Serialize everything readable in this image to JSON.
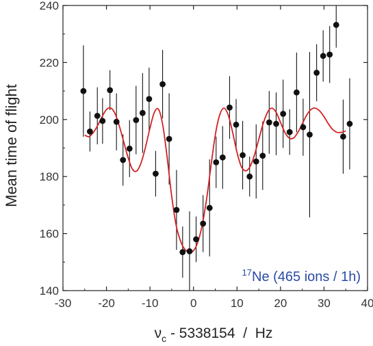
{
  "chart_data": {
    "type": "scatter",
    "xlabel": {
      "symbol": "ν",
      "subscript": "c",
      "rest": " - 5338154  /  Hz"
    },
    "ylabel": "Mean time of flight",
    "xlim": [
      -30,
      40
    ],
    "ylim": [
      140,
      240
    ],
    "xticks": [
      -30,
      -20,
      -10,
      0,
      10,
      20,
      30,
      40
    ],
    "yticks": [
      140,
      160,
      180,
      200,
      220,
      240
    ],
    "grid": false,
    "annotation": {
      "superscript": "17",
      "text": "Ne (465 ions / 1h)",
      "color": "#2b4aa8"
    },
    "series": [
      {
        "type": "scatter-errorbar",
        "color": "#111111",
        "points": [
          {
            "x": -25.3,
            "y": 210.0,
            "err": 16
          },
          {
            "x": -23.8,
            "y": 195.8,
            "err": 7
          },
          {
            "x": -22.1,
            "y": 201.3,
            "err": 10
          },
          {
            "x": -20.9,
            "y": 199.5,
            "err": 8
          },
          {
            "x": -19.2,
            "y": 210.3,
            "err": 7
          },
          {
            "x": -17.7,
            "y": 199.2,
            "err": 10
          },
          {
            "x": -16.2,
            "y": 185.8,
            "err": 9
          },
          {
            "x": -14.7,
            "y": 189.8,
            "err": 10
          },
          {
            "x": -13.2,
            "y": 199.8,
            "err": 12
          },
          {
            "x": -11.7,
            "y": 202.3,
            "err": 14
          },
          {
            "x": -10.2,
            "y": 207.2,
            "err": 11
          },
          {
            "x": -8.7,
            "y": 181.0,
            "err": 8
          },
          {
            "x": -7.1,
            "y": 212.4,
            "err": 12
          },
          {
            "x": -5.6,
            "y": 193.2,
            "err": 16
          },
          {
            "x": -3.9,
            "y": 168.3,
            "err": 14
          },
          {
            "x": -2.5,
            "y": 153.5,
            "err": 9
          },
          {
            "x": -0.9,
            "y": 153.8,
            "err": 14
          },
          {
            "x": 0.6,
            "y": 158.0,
            "err": 8
          },
          {
            "x": 2.2,
            "y": 163.5,
            "err": 10
          },
          {
            "x": 3.7,
            "y": 169.0,
            "err": 17
          },
          {
            "x": 5.2,
            "y": 185.0,
            "err": 9
          },
          {
            "x": 6.7,
            "y": 186.7,
            "err": 11
          },
          {
            "x": 8.3,
            "y": 204.2,
            "err": 11
          },
          {
            "x": 9.8,
            "y": 198.2,
            "err": 9
          },
          {
            "x": 11.3,
            "y": 187.5,
            "err": 12
          },
          {
            "x": 12.9,
            "y": 180.0,
            "err": 7
          },
          {
            "x": 14.4,
            "y": 185.3,
            "err": 13
          },
          {
            "x": 15.9,
            "y": 187.3,
            "err": 12
          },
          {
            "x": 17.4,
            "y": 199.0,
            "err": 11
          },
          {
            "x": 19.0,
            "y": 198.5,
            "err": 11
          },
          {
            "x": 20.6,
            "y": 202.0,
            "err": 12
          },
          {
            "x": 22.1,
            "y": 195.6,
            "err": 8
          },
          {
            "x": 23.7,
            "y": 209.5,
            "err": 14
          },
          {
            "x": 25.2,
            "y": 197.3,
            "err": 10
          },
          {
            "x": 26.7,
            "y": 194.7,
            "err": 29
          },
          {
            "x": 28.3,
            "y": 216.4,
            "err": 10
          },
          {
            "x": 29.8,
            "y": 222.3,
            "err": 9
          },
          {
            "x": 31.3,
            "y": 222.8,
            "err": 10
          },
          {
            "x": 32.8,
            "y": 233.2,
            "err": 8
          },
          {
            "x": 34.4,
            "y": 194.0,
            "err": 13
          },
          {
            "x": 35.9,
            "y": 198.5,
            "err": 16
          }
        ]
      },
      {
        "type": "line",
        "color": "#d42020",
        "x": [
          -25,
          -24,
          -23,
          -22,
          -21,
          -20,
          -19,
          -18,
          -17,
          -16,
          -15,
          -14,
          -13,
          -12,
          -11,
          -10,
          -9,
          -8,
          -7,
          -6,
          -5,
          -4,
          -3,
          -2,
          -1,
          0,
          1,
          2,
          3,
          4,
          5,
          6,
          7,
          8,
          9,
          10,
          11,
          12,
          13,
          14,
          15,
          16,
          17,
          18,
          19,
          20,
          21,
          22,
          23,
          24,
          25,
          26,
          27,
          28,
          29,
          30,
          31,
          32,
          33,
          34,
          35
        ],
        "y": [
          194.5,
          194.0,
          195.5,
          198.0,
          201.0,
          203.5,
          204.0,
          202.0,
          197.5,
          192.0,
          186.5,
          182.5,
          182.0,
          185.0,
          190.5,
          197.0,
          202.5,
          203.5,
          197.5,
          186.0,
          173.0,
          163.0,
          157.5,
          154.5,
          153.5,
          154.0,
          157.0,
          163.0,
          172.0,
          183.5,
          194.5,
          201.5,
          204.0,
          201.5,
          195.5,
          188.5,
          183.5,
          182.0,
          183.5,
          187.5,
          193.0,
          198.5,
          202.5,
          204.0,
          202.5,
          199.0,
          195.5,
          193.5,
          193.5,
          195.5,
          198.5,
          201.5,
          203.5,
          204.0,
          203.0,
          201.0,
          198.5,
          196.5,
          195.5,
          195.5,
          196.0
        ]
      }
    ]
  }
}
